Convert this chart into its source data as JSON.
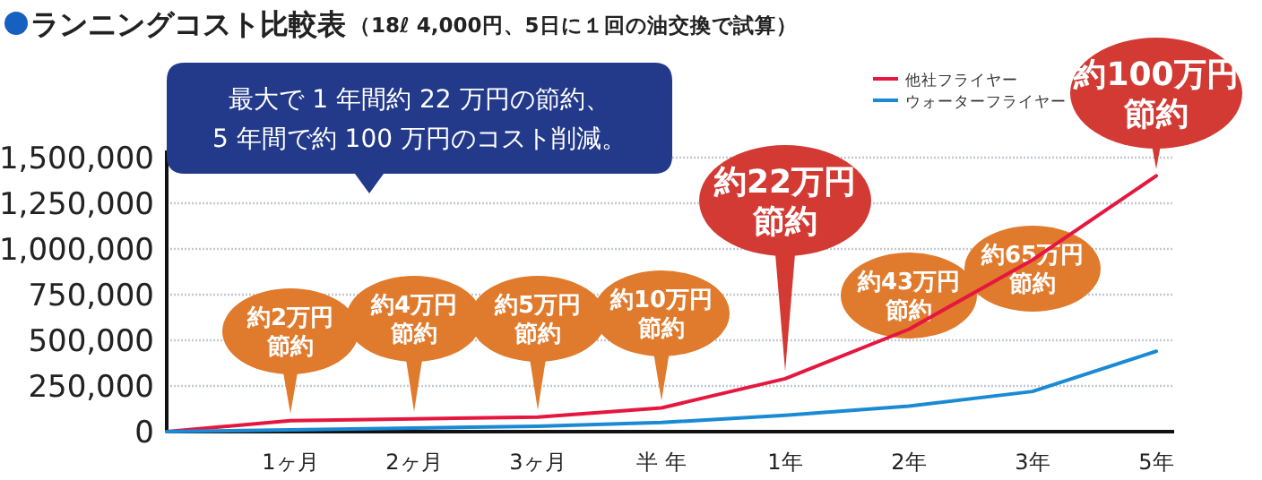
{
  "chart_data": {
    "type": "line",
    "title": "ランニングコスト比較表",
    "subtitle": "（18ℓ 4,000円、5日に１回の油交換で試算）",
    "categories": [
      null,
      "1ヶ月",
      "2ヶ月",
      "3ヶ月",
      "半 年",
      "1年",
      "2年",
      "3年",
      "5年"
    ],
    "series": [
      {
        "name": "他社フライヤー",
        "color": "#e5173f",
        "values": [
          0,
          60000,
          70000,
          80000,
          130000,
          290000,
          560000,
          940000,
          1400000
        ]
      },
      {
        "name": "ウォーターフライヤー",
        "color": "#1a8ad4",
        "values": [
          0,
          10000,
          20000,
          30000,
          50000,
          90000,
          140000,
          220000,
          440000
        ]
      }
    ],
    "ylim": [
      0,
      1500000
    ],
    "yticks": [
      {
        "value": 0,
        "label": "0"
      },
      {
        "value": 250000,
        "label": "250,000"
      },
      {
        "value": 500000,
        "label": "500,000"
      },
      {
        "value": 750000,
        "label": "750,000"
      },
      {
        "value": 1000000,
        "label": "1,000,000"
      },
      {
        "value": 1250000,
        "label": "1,250,000"
      },
      {
        "value": 1500000,
        "label": "1,500,000"
      }
    ],
    "grid": "y",
    "legend": "top right",
    "marker": "none",
    "line_style": "solid",
    "annotations": [
      "最大で 1 年間約 22 万円の節約、\n5 年間で約 100 万円のコスト削減。",
      {
        "text": "約2万円節約",
        "x": "1ヶ月",
        "y": 60000
      },
      {
        "text": "約4万円節約",
        "x": "2ヶ月",
        "y": 70000
      },
      {
        "text": "約5万円節約",
        "x": "3ヶ月",
        "y": 80000
      },
      {
        "text": "約10万円節約",
        "x": "半 年",
        "y": 130000
      },
      {
        "text": "約22万円節約",
        "x": "1年",
        "y": 290000
      },
      {
        "text": "約43万円節約",
        "x": "2年",
        "y": 560000
      },
      {
        "text": "約65万円節約",
        "x": "3年",
        "y": 940000
      },
      {
        "text": "約100万円節約",
        "x": "5年",
        "y": 1400000
      }
    ]
  }
}
